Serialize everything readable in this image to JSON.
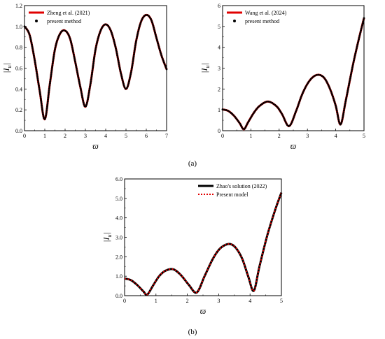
{
  "panel_labels": {
    "a": "(a)",
    "b": "(b)"
  },
  "colors": {
    "red": "#e00000",
    "black": "#000000",
    "frame": "#000000"
  },
  "chart_data": [
    {
      "type": "line",
      "panel": "top-left",
      "xlabel": "ϖ",
      "ylabel": "|I_u|",
      "ylabel_main": "|I",
      "ylabel_sub": "u",
      "ylabel_close": "|",
      "xlim": [
        0,
        7
      ],
      "ylim": [
        0,
        1.2
      ],
      "xticks": [
        "0",
        "1",
        "2",
        "3",
        "4",
        "5",
        "6",
        "7"
      ],
      "yticks": [
        "0.0",
        "0.2",
        "0.4",
        "0.6",
        "0.8",
        "1.0",
        "1.2"
      ],
      "legend_position": "top-left",
      "series": [
        {
          "name": "Zheng et al. (2021)",
          "style": "red-line",
          "x": [
            0,
            0.25,
            0.5,
            0.75,
            1.0,
            1.25,
            1.5,
            1.75,
            2.0,
            2.25,
            2.5,
            2.75,
            3.0,
            3.25,
            3.5,
            3.75,
            4.0,
            4.25,
            4.5,
            4.75,
            5.0,
            5.25,
            5.5,
            5.75,
            6.0,
            6.25,
            6.5,
            6.75,
            7.0
          ],
          "y": [
            1.0,
            0.92,
            0.68,
            0.38,
            0.11,
            0.45,
            0.78,
            0.93,
            0.96,
            0.88,
            0.66,
            0.42,
            0.23,
            0.45,
            0.78,
            0.96,
            1.02,
            0.96,
            0.79,
            0.55,
            0.4,
            0.56,
            0.86,
            1.05,
            1.11,
            1.06,
            0.89,
            0.72,
            0.59
          ]
        },
        {
          "name": "present method",
          "style": "black-dots",
          "x": [
            0,
            0.25,
            0.5,
            0.75,
            1.0,
            1.25,
            1.5,
            1.75,
            2.0,
            2.25,
            2.5,
            2.75,
            3.0,
            3.25,
            3.5,
            3.75,
            4.0,
            4.25,
            4.5,
            4.75,
            5.0,
            5.25,
            5.5,
            5.75,
            6.0,
            6.25,
            6.5,
            6.75,
            7.0
          ],
          "y": [
            1.0,
            0.92,
            0.68,
            0.38,
            0.11,
            0.45,
            0.78,
            0.93,
            0.96,
            0.88,
            0.66,
            0.42,
            0.23,
            0.45,
            0.78,
            0.96,
            1.02,
            0.96,
            0.79,
            0.55,
            0.4,
            0.56,
            0.86,
            1.05,
            1.11,
            1.06,
            0.89,
            0.72,
            0.59
          ]
        }
      ]
    },
    {
      "type": "line",
      "panel": "top-right",
      "xlabel": "ϖ",
      "ylabel": "|I_u|",
      "ylabel_main": "|I",
      "ylabel_sub": "u",
      "ylabel_close": "|",
      "xlim": [
        0,
        5
      ],
      "ylim": [
        0,
        6
      ],
      "xticks": [
        "0",
        "1",
        "2",
        "3",
        "4",
        "5"
      ],
      "yticks": [
        "0",
        "1",
        "2",
        "3",
        "4",
        "5",
        "6"
      ],
      "legend_position": "top-left",
      "series": [
        {
          "name": "Wang et al. (2024)",
          "style": "red-line",
          "x": [
            0,
            0.2,
            0.4,
            0.6,
            0.75,
            0.9,
            1.1,
            1.3,
            1.6,
            1.9,
            2.1,
            2.35,
            2.6,
            2.8,
            3.0,
            3.2,
            3.4,
            3.6,
            3.8,
            4.0,
            4.17,
            4.35,
            4.6,
            4.8,
            5.0
          ],
          "y": [
            1.02,
            0.95,
            0.72,
            0.37,
            0.07,
            0.4,
            0.85,
            1.18,
            1.4,
            1.18,
            0.8,
            0.22,
            0.95,
            1.7,
            2.25,
            2.58,
            2.68,
            2.52,
            2.0,
            1.2,
            0.3,
            1.4,
            3.1,
            4.3,
            5.4
          ]
        },
        {
          "name": "present method",
          "style": "black-dots",
          "x": [
            0,
            0.2,
            0.4,
            0.6,
            0.75,
            0.9,
            1.1,
            1.3,
            1.6,
            1.9,
            2.1,
            2.35,
            2.6,
            2.8,
            3.0,
            3.2,
            3.4,
            3.6,
            3.8,
            4.0,
            4.17,
            4.35,
            4.6,
            4.8,
            5.0
          ],
          "y": [
            1.02,
            0.95,
            0.72,
            0.37,
            0.07,
            0.4,
            0.85,
            1.18,
            1.4,
            1.18,
            0.8,
            0.22,
            0.95,
            1.7,
            2.25,
            2.58,
            2.68,
            2.52,
            2.0,
            1.2,
            0.3,
            1.4,
            3.1,
            4.3,
            5.4
          ]
        }
      ]
    },
    {
      "type": "line",
      "panel": "bottom",
      "xlabel": "ϖ",
      "ylabel": "|I_u|",
      "ylabel_main": "|I",
      "ylabel_sub": "u",
      "ylabel_close": "|",
      "xlim": [
        0,
        5
      ],
      "ylim": [
        0,
        6
      ],
      "xticks": [
        "0",
        "1",
        "2",
        "3",
        "4",
        "5"
      ],
      "yticks": [
        "0.0",
        "1.0",
        "2.0",
        "3.0",
        "4.0",
        "5.0",
        "6.0"
      ],
      "legend_position": "top-right",
      "series": [
        {
          "name": "Zhao's solution (2022)",
          "style": "black-line",
          "x": [
            0,
            0.2,
            0.4,
            0.6,
            0.72,
            0.9,
            1.1,
            1.3,
            1.55,
            1.8,
            2.05,
            2.3,
            2.55,
            2.8,
            3.0,
            3.2,
            3.38,
            3.55,
            3.75,
            3.95,
            4.12,
            4.3,
            4.55,
            4.8,
            5.0
          ],
          "y": [
            0.88,
            0.8,
            0.55,
            0.22,
            0.05,
            0.5,
            1.0,
            1.28,
            1.36,
            1.05,
            0.55,
            0.16,
            1.0,
            1.85,
            2.35,
            2.6,
            2.65,
            2.45,
            1.9,
            0.95,
            0.25,
            1.5,
            3.1,
            4.4,
            5.3
          ]
        },
        {
          "name": "Present model",
          "style": "red-dotted",
          "x": [
            0,
            0.2,
            0.4,
            0.6,
            0.72,
            0.9,
            1.1,
            1.3,
            1.55,
            1.8,
            2.05,
            2.3,
            2.55,
            2.8,
            3.0,
            3.2,
            3.38,
            3.55,
            3.75,
            3.95,
            4.12,
            4.3,
            4.55,
            4.8,
            5.0
          ],
          "y": [
            0.88,
            0.8,
            0.55,
            0.22,
            0.05,
            0.5,
            1.0,
            1.28,
            1.36,
            1.05,
            0.55,
            0.16,
            1.0,
            1.85,
            2.35,
            2.6,
            2.65,
            2.45,
            1.9,
            0.95,
            0.25,
            1.5,
            3.1,
            4.4,
            5.3
          ]
        }
      ]
    }
  ]
}
